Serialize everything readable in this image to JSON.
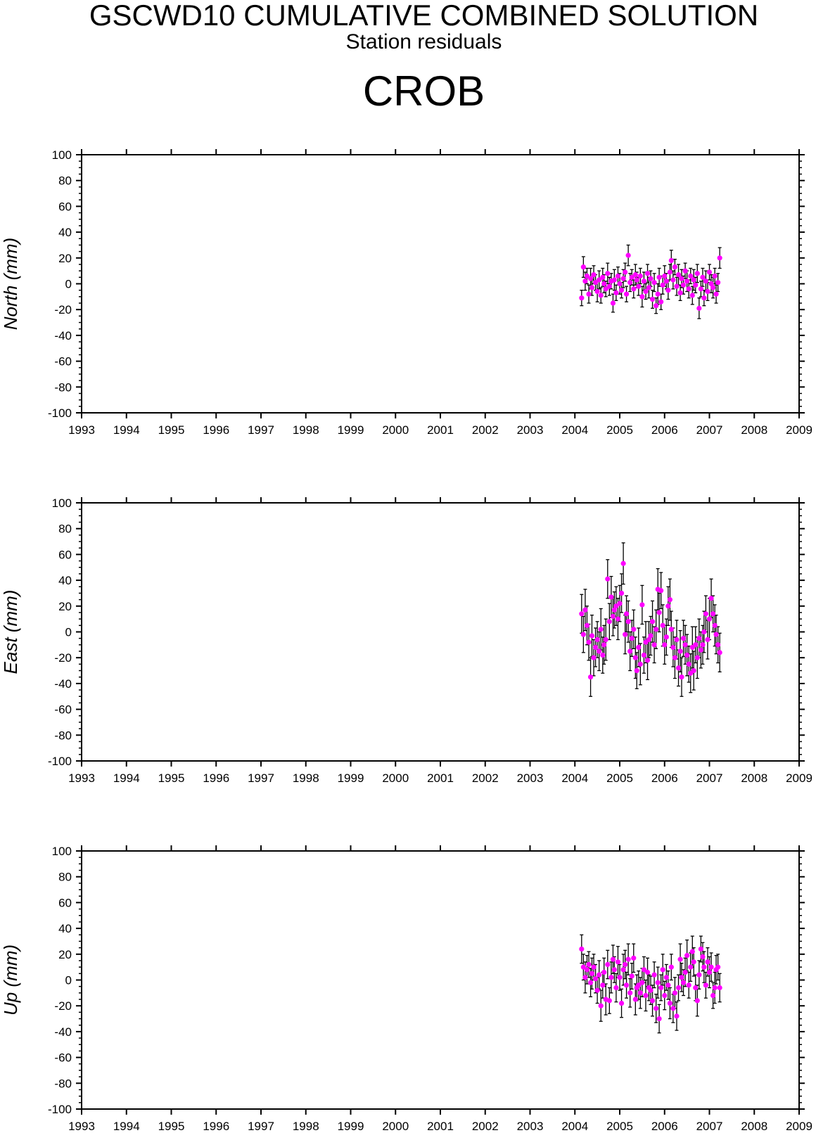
{
  "header": {
    "title": "GSCWD10 CUMULATIVE COMBINED SOLUTION",
    "subtitle": "Station residuals",
    "station": "CROB"
  },
  "colors": {
    "marker": "#ff00ff",
    "errorbar": "#000000",
    "axis": "#000000"
  },
  "chart_data": [
    {
      "type": "scatter",
      "ylabel": "North (mm)",
      "xlim": [
        1993,
        2009
      ],
      "ylim": [
        -100,
        100
      ],
      "xticks": [
        1993,
        1994,
        1995,
        1996,
        1997,
        1998,
        1999,
        2000,
        2001,
        2002,
        2003,
        2004,
        2005,
        2006,
        2007,
        2008,
        2009
      ],
      "yticks": [
        -100,
        -80,
        -60,
        -40,
        -20,
        0,
        20,
        40,
        60,
        80,
        100
      ],
      "grid": false,
      "errorbars": true,
      "series": [
        {
          "x": [
            2004.15,
            2004.19,
            2004.23,
            2004.27,
            2004.31,
            2004.35,
            2004.38,
            2004.42,
            2004.46,
            2004.5,
            2004.54,
            2004.58,
            2004.62,
            2004.65,
            2004.69,
            2004.73,
            2004.77,
            2004.81,
            2004.85,
            2004.88,
            2004.92,
            2004.96,
            2005.0,
            2005.04,
            2005.08,
            2005.12,
            2005.15,
            2005.19,
            2005.23,
            2005.27,
            2005.31,
            2005.35,
            2005.38,
            2005.42,
            2005.46,
            2005.5,
            2005.54,
            2005.58,
            2005.62,
            2005.65,
            2005.69,
            2005.73,
            2005.77,
            2005.81,
            2005.85,
            2005.88,
            2005.92,
            2005.96,
            2006.0,
            2006.04,
            2006.08,
            2006.12,
            2006.15,
            2006.19,
            2006.23,
            2006.27,
            2006.31,
            2006.35,
            2006.38,
            2006.42,
            2006.46,
            2006.5,
            2006.54,
            2006.58,
            2006.62,
            2006.65,
            2006.69,
            2006.73,
            2006.77,
            2006.81,
            2006.85,
            2006.88,
            2006.92,
            2006.96,
            2007.0,
            2007.04,
            2007.08,
            2007.12,
            2007.15,
            2007.19,
            2007.23
          ],
          "y": [
            -11,
            13,
            2,
            6,
            -8,
            4,
            -3,
            7,
            1,
            -6,
            3,
            -9,
            5,
            0,
            -4,
            8,
            -2,
            2,
            -15,
            3,
            -7,
            6,
            0,
            -5,
            4,
            9,
            -8,
            22,
            1,
            5,
            -4,
            7,
            3,
            -2,
            6,
            -10,
            2,
            -6,
            8,
            -3,
            4,
            -12,
            1,
            -17,
            -8,
            5,
            -14,
            -1,
            6,
            2,
            -5,
            9,
            18,
            3,
            13,
            -2,
            7,
            -7,
            4,
            -1,
            10,
            2,
            -4,
            6,
            -9,
            3,
            -1,
            8,
            -19,
            -4,
            5,
            -11,
            2,
            -6,
            9,
            0,
            -3,
            6,
            -8,
            1,
            20
          ],
          "err": [
            6,
            8,
            7,
            6,
            7,
            8,
            6,
            7,
            6,
            8,
            7,
            6,
            7,
            7,
            6,
            8,
            7,
            6,
            7,
            8,
            6,
            7,
            8,
            6,
            7,
            7,
            6,
            8,
            7,
            6,
            7,
            8,
            6,
            7,
            6,
            8,
            7,
            6,
            7,
            8,
            6,
            7,
            7,
            6,
            8,
            7,
            6,
            7,
            8,
            6,
            7,
            6,
            8,
            7,
            6,
            7,
            8,
            6,
            7,
            7,
            6,
            8,
            7,
            6,
            7,
            8,
            6,
            7,
            8,
            6,
            7,
            6,
            8,
            7,
            6,
            7,
            8,
            6,
            7,
            7,
            8
          ]
        }
      ]
    },
    {
      "type": "scatter",
      "ylabel": "East (mm)",
      "xlim": [
        1993,
        2009
      ],
      "ylim": [
        -100,
        100
      ],
      "xticks": [
        1993,
        1994,
        1995,
        1996,
        1997,
        1998,
        1999,
        2000,
        2001,
        2002,
        2003,
        2004,
        2005,
        2006,
        2007,
        2008,
        2009
      ],
      "yticks": [
        -100,
        -80,
        -60,
        -40,
        -20,
        0,
        20,
        40,
        60,
        80,
        100
      ],
      "grid": false,
      "errorbars": true,
      "series": [
        {
          "x": [
            2004.15,
            2004.19,
            2004.23,
            2004.27,
            2004.31,
            2004.35,
            2004.38,
            2004.42,
            2004.46,
            2004.5,
            2004.54,
            2004.58,
            2004.62,
            2004.65,
            2004.69,
            2004.73,
            2004.77,
            2004.81,
            2004.85,
            2004.88,
            2004.92,
            2004.96,
            2005.0,
            2005.04,
            2005.08,
            2005.12,
            2005.15,
            2005.19,
            2005.23,
            2005.27,
            2005.31,
            2005.35,
            2005.38,
            2005.42,
            2005.46,
            2005.5,
            2005.54,
            2005.58,
            2005.62,
            2005.65,
            2005.69,
            2005.73,
            2005.77,
            2005.81,
            2005.85,
            2005.88,
            2005.92,
            2005.96,
            2006.0,
            2006.04,
            2006.08,
            2006.12,
            2006.15,
            2006.19,
            2006.23,
            2006.27,
            2006.31,
            2006.35,
            2006.38,
            2006.42,
            2006.46,
            2006.5,
            2006.54,
            2006.58,
            2006.62,
            2006.65,
            2006.69,
            2006.73,
            2006.77,
            2006.81,
            2006.85,
            2006.88,
            2006.92,
            2006.96,
            2007.0,
            2007.04,
            2007.08,
            2007.12,
            2007.15,
            2007.19,
            2007.23
          ],
          "y": [
            14,
            -2,
            17,
            5,
            -8,
            -35,
            -3,
            -20,
            -12,
            -6,
            -15,
            2,
            -18,
            -10,
            -6,
            41,
            8,
            27,
            12,
            17,
            20,
            10,
            22,
            30,
            53,
            -2,
            14,
            8,
            -15,
            -5,
            2,
            -20,
            -30,
            -12,
            -25,
            21,
            -18,
            -8,
            -22,
            -6,
            -3,
            8,
            -10,
            2,
            33,
            15,
            32,
            5,
            -10,
            -4,
            20,
            25,
            2,
            -12,
            -20,
            -6,
            -28,
            -15,
            -35,
            -5,
            -10,
            -18,
            -25,
            -32,
            -12,
            -30,
            -10,
            -20,
            -5,
            -14,
            -10,
            0,
            14,
            -6,
            10,
            26,
            14,
            5,
            -2,
            -10,
            -16
          ],
          "err": [
            15,
            14,
            16,
            15,
            14,
            15,
            16,
            14,
            15,
            14,
            15,
            16,
            14,
            15,
            16,
            15,
            14,
            16,
            15,
            14,
            15,
            16,
            14,
            15,
            16,
            15,
            14,
            16,
            15,
            14,
            15,
            16,
            14,
            15,
            16,
            15,
            14,
            16,
            15,
            14,
            15,
            16,
            14,
            15,
            16,
            15,
            14,
            16,
            15,
            14,
            15,
            16,
            14,
            15,
            16,
            15,
            14,
            16,
            15,
            14,
            15,
            16,
            14,
            15,
            16,
            15,
            14,
            16,
            15,
            14,
            15,
            16,
            14,
            15,
            16,
            15,
            14,
            16,
            15,
            14,
            15
          ]
        }
      ]
    },
    {
      "type": "scatter",
      "ylabel": "Up (mm)",
      "xlim": [
        1993,
        2009
      ],
      "ylim": [
        -100,
        100
      ],
      "xticks": [
        1993,
        1994,
        1995,
        1996,
        1997,
        1998,
        1999,
        2000,
        2001,
        2002,
        2003,
        2004,
        2005,
        2006,
        2007,
        2008,
        2009
      ],
      "yticks": [
        -100,
        -80,
        -60,
        -40,
        -20,
        0,
        20,
        40,
        60,
        80,
        100
      ],
      "grid": false,
      "errorbars": true,
      "series": [
        {
          "x": [
            2004.15,
            2004.19,
            2004.23,
            2004.27,
            2004.31,
            2004.35,
            2004.38,
            2004.42,
            2004.46,
            2004.5,
            2004.54,
            2004.58,
            2004.62,
            2004.65,
            2004.69,
            2004.73,
            2004.77,
            2004.81,
            2004.85,
            2004.88,
            2004.92,
            2004.96,
            2005.0,
            2005.04,
            2005.08,
            2005.12,
            2005.15,
            2005.19,
            2005.23,
            2005.27,
            2005.31,
            2005.35,
            2005.38,
            2005.42,
            2005.46,
            2005.5,
            2005.54,
            2005.58,
            2005.62,
            2005.65,
            2005.69,
            2005.73,
            2005.77,
            2005.81,
            2005.85,
            2005.88,
            2005.92,
            2005.96,
            2006.0,
            2006.04,
            2006.08,
            2006.12,
            2006.15,
            2006.19,
            2006.23,
            2006.27,
            2006.31,
            2006.35,
            2006.38,
            2006.42,
            2006.46,
            2006.5,
            2006.54,
            2006.58,
            2006.62,
            2006.65,
            2006.69,
            2006.73,
            2006.77,
            2006.81,
            2006.85,
            2006.88,
            2006.92,
            2006.96,
            2007.0,
            2007.04,
            2007.08,
            2007.12,
            2007.15,
            2007.19,
            2007.23
          ],
          "y": [
            24,
            10,
            2,
            8,
            12,
            -2,
            5,
            10,
            1,
            -8,
            4,
            -20,
            -4,
            6,
            -15,
            12,
            -16,
            2,
            16,
            8,
            -6,
            14,
            2,
            -18,
            8,
            12,
            -4,
            16,
            -10,
            3,
            17,
            -15,
            -6,
            -4,
            -10,
            -2,
            8,
            -12,
            6,
            -6,
            -8,
            -16,
            4,
            -22,
            -2,
            -30,
            -6,
            8,
            -12,
            2,
            -4,
            -18,
            10,
            -22,
            -10,
            -28,
            -6,
            16,
            2,
            -2,
            6,
            19,
            -4,
            10,
            22,
            14,
            -6,
            -16,
            4,
            24,
            18,
            10,
            -4,
            14,
            6,
            10,
            -12,
            -6,
            8,
            10,
            -6
          ],
          "err": [
            11,
            10,
            12,
            11,
            10,
            11,
            12,
            10,
            11,
            10,
            11,
            12,
            10,
            11,
            12,
            11,
            10,
            12,
            11,
            10,
            11,
            12,
            10,
            11,
            12,
            11,
            10,
            12,
            11,
            10,
            11,
            12,
            10,
            11,
            12,
            11,
            10,
            12,
            11,
            10,
            11,
            12,
            10,
            11,
            12,
            11,
            10,
            12,
            11,
            10,
            11,
            12,
            10,
            11,
            12,
            11,
            10,
            12,
            11,
            10,
            11,
            12,
            10,
            11,
            12,
            11,
            10,
            12,
            11,
            10,
            11,
            12,
            10,
            11,
            12,
            11,
            10,
            12,
            11,
            10,
            11
          ]
        }
      ]
    }
  ]
}
